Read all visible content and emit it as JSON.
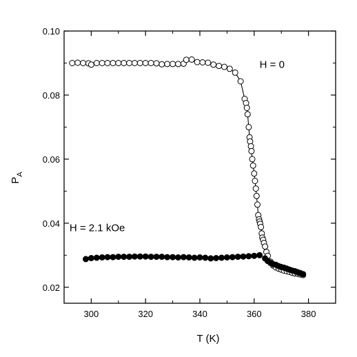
{
  "chart_data": {
    "type": "scatter",
    "xlabel": "T (K)",
    "ylabel_main": "P",
    "ylabel_sub": "A",
    "xlim": [
      290,
      390
    ],
    "ylim": [
      0.015,
      0.1
    ],
    "xticks": [
      300,
      320,
      340,
      360,
      380
    ],
    "xtick_labels": [
      "300",
      "320",
      "340",
      "360",
      "380"
    ],
    "yticks": [
      0.02,
      0.04,
      0.06,
      0.08,
      0.1
    ],
    "ytick_labels": [
      "0.02",
      "0.04",
      "0.06",
      "0.08",
      "0.10"
    ],
    "grid": false,
    "annotations": [
      {
        "text": "H = 0",
        "x": 362,
        "y": 0.0885
      },
      {
        "text": "H = 2.1 kOe",
        "x": 292,
        "y": 0.0375
      }
    ],
    "series": [
      {
        "name": "H = 0",
        "marker": "open-circle",
        "color": "#000000",
        "line": true,
        "points": [
          [
            293,
            0.09
          ],
          [
            295,
            0.0901
          ],
          [
            297,
            0.09
          ],
          [
            299,
            0.0899
          ],
          [
            300,
            0.0895
          ],
          [
            302,
            0.09
          ],
          [
            304,
            0.09
          ],
          [
            306,
            0.09
          ],
          [
            308,
            0.09
          ],
          [
            310,
            0.09
          ],
          [
            312,
            0.09
          ],
          [
            314,
            0.09
          ],
          [
            316,
            0.09
          ],
          [
            318,
            0.09
          ],
          [
            320,
            0.09
          ],
          [
            322,
            0.09
          ],
          [
            324,
            0.0899
          ],
          [
            326,
            0.0896
          ],
          [
            328,
            0.0897
          ],
          [
            330,
            0.0897
          ],
          [
            332,
            0.0897
          ],
          [
            334,
            0.0898
          ],
          [
            335,
            0.091
          ],
          [
            337,
            0.0911
          ],
          [
            339,
            0.0903
          ],
          [
            341,
            0.0902
          ],
          [
            343,
            0.0901
          ],
          [
            345,
            0.0895
          ],
          [
            347,
            0.0891
          ],
          [
            349,
            0.0888
          ],
          [
            351,
            0.0882
          ],
          [
            353,
            0.087
          ],
          [
            355,
            0.0843
          ],
          [
            356.5,
            0.0788
          ],
          [
            357,
            0.0775
          ],
          [
            357.3,
            0.076
          ],
          [
            357.6,
            0.074
          ],
          [
            358,
            0.07
          ],
          [
            358.3,
            0.0668
          ],
          [
            358.5,
            0.0655
          ],
          [
            358.8,
            0.064
          ],
          [
            359,
            0.0625
          ],
          [
            359.3,
            0.06
          ],
          [
            359.6,
            0.058
          ],
          [
            360,
            0.0555
          ],
          [
            360.3,
            0.0532
          ],
          [
            360.6,
            0.0508
          ],
          [
            360.9,
            0.0485
          ],
          [
            361.2,
            0.0458
          ],
          [
            361.5,
            0.0425
          ],
          [
            361.8,
            0.0412
          ],
          [
            362,
            0.0405
          ],
          [
            362.2,
            0.0398
          ],
          [
            362.5,
            0.0388
          ],
          [
            362.8,
            0.0368
          ],
          [
            363,
            0.0355
          ],
          [
            363.3,
            0.0348
          ],
          [
            363.6,
            0.0338
          ],
          [
            364,
            0.0327
          ],
          [
            364.5,
            0.031
          ],
          [
            365,
            0.0298
          ],
          [
            366,
            0.028
          ],
          [
            367,
            0.0268
          ],
          [
            368,
            0.0262
          ],
          [
            369,
            0.0258
          ],
          [
            370,
            0.0255
          ],
          [
            371,
            0.0252
          ],
          [
            372,
            0.025
          ],
          [
            373,
            0.0248
          ],
          [
            374,
            0.0245
          ],
          [
            375,
            0.0243
          ],
          [
            376,
            0.0242
          ],
          [
            377,
            0.024
          ],
          [
            378,
            0.0238
          ]
        ]
      },
      {
        "name": "H = 2.1 kOe",
        "marker": "filled-circle",
        "color": "#000000",
        "line": false,
        "points": [
          [
            298,
            0.0288
          ],
          [
            300,
            0.0291
          ],
          [
            302,
            0.0292
          ],
          [
            304,
            0.0293
          ],
          [
            306,
            0.0294
          ],
          [
            308,
            0.0294
          ],
          [
            310,
            0.0295
          ],
          [
            312,
            0.0295
          ],
          [
            314,
            0.0295
          ],
          [
            316,
            0.0296
          ],
          [
            318,
            0.0296
          ],
          [
            320,
            0.0296
          ],
          [
            322,
            0.0295
          ],
          [
            324,
            0.0295
          ],
          [
            326,
            0.0295
          ],
          [
            328,
            0.0294
          ],
          [
            330,
            0.0294
          ],
          [
            332,
            0.0293
          ],
          [
            334,
            0.0294
          ],
          [
            336,
            0.0293
          ],
          [
            338,
            0.0292
          ],
          [
            340,
            0.0293
          ],
          [
            342,
            0.0292
          ],
          [
            344,
            0.029
          ],
          [
            346,
            0.0291
          ],
          [
            348,
            0.0292
          ],
          [
            350,
            0.0293
          ],
          [
            352,
            0.0294
          ],
          [
            354,
            0.0295
          ],
          [
            356,
            0.0296
          ],
          [
            358,
            0.0297
          ],
          [
            360,
            0.0298
          ],
          [
            362,
            0.03
          ],
          [
            364,
            0.029
          ],
          [
            365,
            0.0282
          ],
          [
            366,
            0.0276
          ],
          [
            367,
            0.0272
          ],
          [
            368,
            0.027
          ],
          [
            369,
            0.0266
          ],
          [
            370,
            0.0263
          ],
          [
            371,
            0.0261
          ],
          [
            372,
            0.0258
          ],
          [
            373,
            0.0255
          ],
          [
            374,
            0.0252
          ],
          [
            375,
            0.025
          ],
          [
            376,
            0.0247
          ],
          [
            377,
            0.0244
          ],
          [
            378,
            0.0241
          ]
        ]
      }
    ]
  }
}
